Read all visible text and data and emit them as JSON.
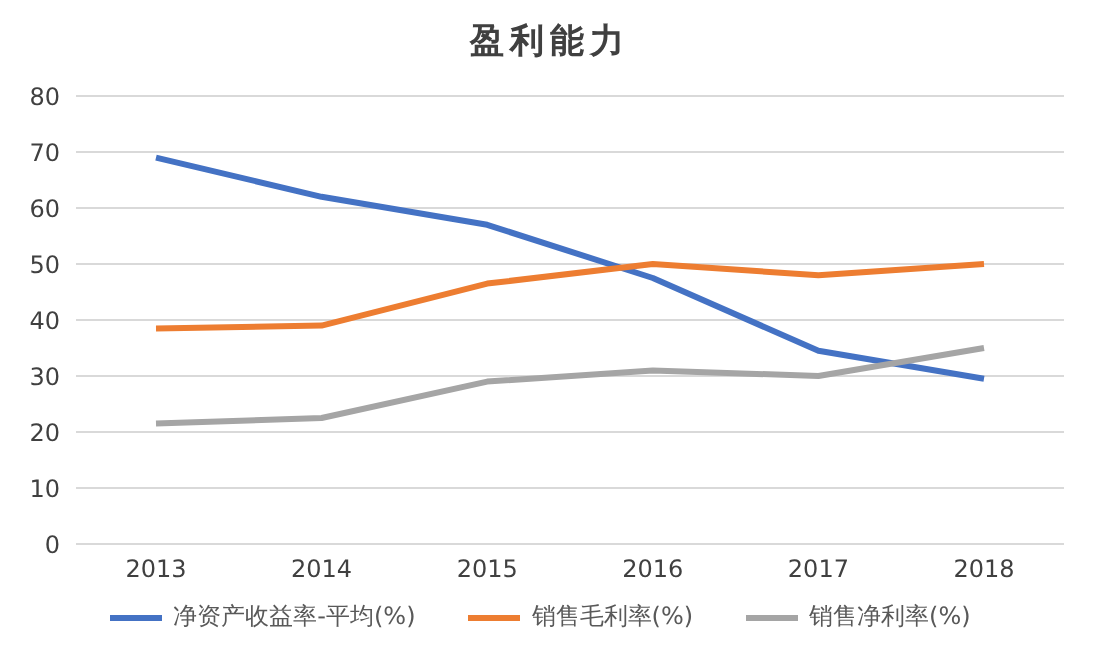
{
  "chart_data": {
    "type": "line",
    "title": "盈利能力",
    "categories": [
      "2013",
      "2014",
      "2015",
      "2016",
      "2017",
      "2018"
    ],
    "series": [
      {
        "name": "净资产收益率-平均(%)",
        "color": "#4472c4",
        "values": [
          69,
          62,
          57,
          47.5,
          34.5,
          29.5
        ]
      },
      {
        "name": "销售毛利率(%)",
        "color": "#ed7d31",
        "values": [
          38.5,
          39,
          46.5,
          50,
          48,
          50
        ]
      },
      {
        "name": "销售净利率(%)",
        "color": "#a5a5a5",
        "values": [
          21.5,
          22.5,
          29,
          31,
          30,
          35
        ]
      }
    ],
    "ylim": [
      0,
      80
    ],
    "yticks": [
      0,
      10,
      20,
      30,
      40,
      50,
      60,
      70,
      80
    ],
    "grid": "y",
    "legend": "bottom",
    "marker": "none",
    "line_style": "solid"
  }
}
